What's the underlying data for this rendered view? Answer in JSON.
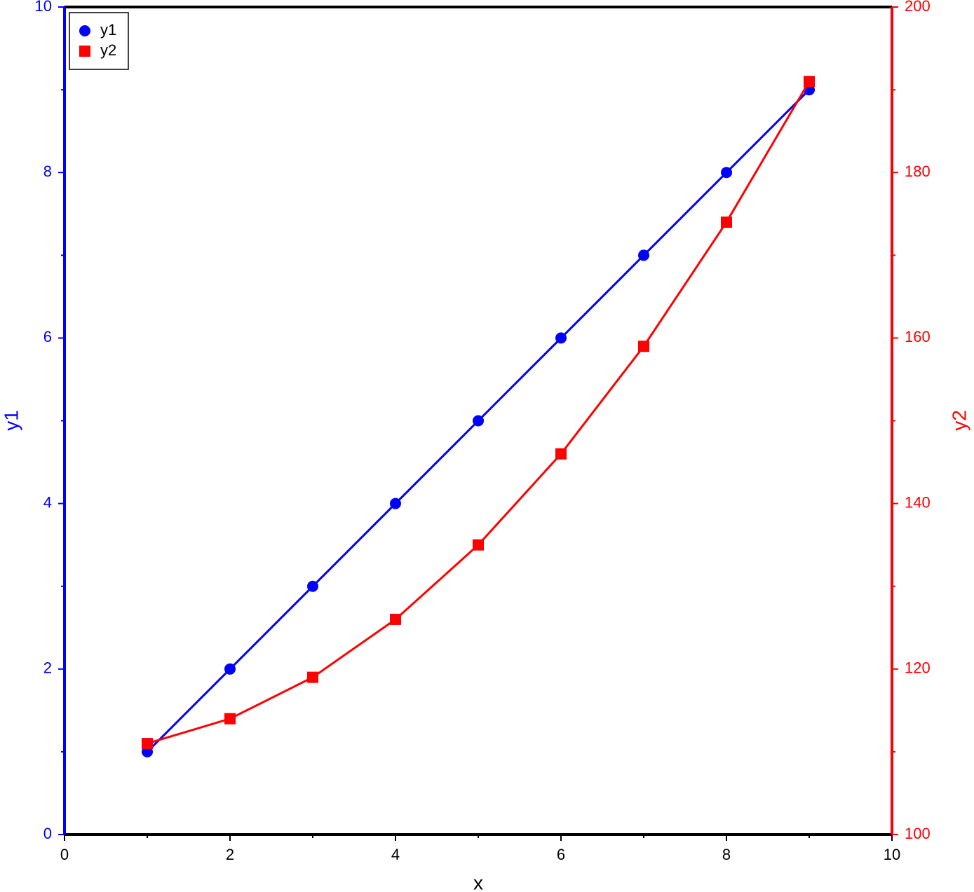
{
  "chart_data": {
    "type": "line",
    "x_label": "x",
    "y_label": "y1",
    "y2_label": "y2",
    "x": [
      1,
      2,
      3,
      4,
      5,
      6,
      7,
      8,
      9
    ],
    "series": [
      {
        "name": "y1",
        "color": "#0000ff",
        "marker": "circle",
        "axis": "y1",
        "values": [
          1,
          2,
          3,
          4,
          5,
          6,
          7,
          8,
          9
        ]
      },
      {
        "name": "y2",
        "color": "#ff0000",
        "marker": "square",
        "axis": "y2",
        "values": [
          111,
          114,
          119,
          126,
          135,
          146,
          159,
          174,
          191
        ]
      }
    ],
    "xlim": [
      0,
      10
    ],
    "xticks": [
      0,
      2,
      4,
      6,
      8,
      10
    ],
    "ylim": [
      0,
      10
    ],
    "yticks": [
      0,
      2,
      4,
      6,
      8,
      10
    ],
    "y2lim": [
      100,
      200
    ],
    "y2ticks": [
      100,
      120,
      140,
      160,
      180,
      200
    ],
    "legend": "upper left"
  }
}
